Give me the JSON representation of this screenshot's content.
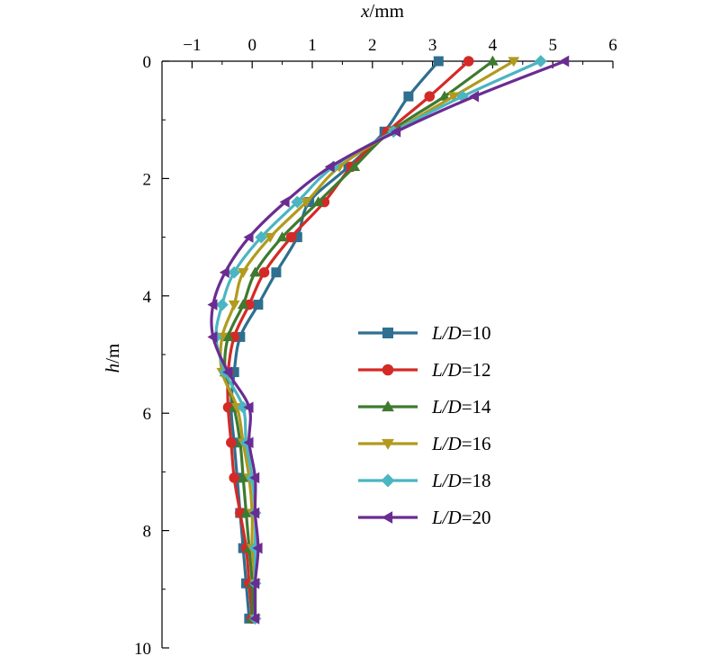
{
  "chart_data": {
    "type": "line",
    "xlabel": {
      "var": "x",
      "unit": "/mm"
    },
    "ylabel": {
      "var": "h",
      "unit": "/m"
    },
    "x_axis_position": "top",
    "y_inverted": true,
    "xlim": [
      -1.5,
      6
    ],
    "ylim": [
      0,
      10
    ],
    "xticks": [
      -1,
      0,
      1,
      2,
      3,
      4,
      5,
      6
    ],
    "yticks": [
      0,
      2,
      4,
      6,
      8,
      10
    ],
    "grid": false,
    "legend_position": "center-right",
    "depths": [
      0,
      0.6,
      1.2,
      1.8,
      2.4,
      3.0,
      3.6,
      4.15,
      4.7,
      5.3,
      5.9,
      6.5,
      7.1,
      7.7,
      8.3,
      8.9,
      9.5
    ],
    "series": [
      {
        "label_var": "L/D",
        "label_value": "=10",
        "color": "#2f6f8f",
        "marker": "square",
        "values": [
          3.1,
          2.6,
          2.2,
          1.6,
          0.95,
          0.75,
          0.4,
          0.1,
          -0.2,
          -0.3,
          -0.35,
          -0.3,
          -0.25,
          -0.2,
          -0.15,
          -0.1,
          -0.05
        ]
      },
      {
        "label_var": "L/D",
        "label_value": "=12",
        "color": "#d42a27",
        "marker": "circle",
        "values": [
          3.6,
          2.95,
          2.25,
          1.65,
          1.2,
          0.65,
          0.2,
          -0.05,
          -0.3,
          -0.4,
          -0.4,
          -0.35,
          -0.3,
          -0.2,
          -0.1,
          -0.05,
          0
        ]
      },
      {
        "label_var": "L/D",
        "label_value": "=14",
        "color": "#3e7a2f",
        "marker": "triangle-up",
        "values": [
          4.0,
          3.2,
          2.3,
          1.7,
          1.1,
          0.5,
          0.05,
          -0.15,
          -0.4,
          -0.45,
          -0.3,
          -0.2,
          -0.15,
          -0.1,
          -0.05,
          0,
          0
        ]
      },
      {
        "label_var": "L/D",
        "label_value": "=16",
        "color": "#b19a1e",
        "marker": "triangle-down",
        "values": [
          4.35,
          3.35,
          2.35,
          1.45,
          0.9,
          0.3,
          -0.15,
          -0.3,
          -0.5,
          -0.5,
          -0.25,
          -0.15,
          -0.05,
          0,
          0,
          0.05,
          0.05
        ]
      },
      {
        "label_var": "L/D",
        "label_value": "=18",
        "color": "#4bb5c1",
        "marker": "diamond",
        "values": [
          4.8,
          3.5,
          2.35,
          1.35,
          0.75,
          0.15,
          -0.3,
          -0.5,
          -0.6,
          -0.45,
          -0.15,
          -0.1,
          0,
          0.05,
          0.05,
          0.05,
          0.05
        ]
      },
      {
        "label_var": "L/D",
        "label_value": "=20",
        "color": "#6a2c91",
        "marker": "triangle-left",
        "values": [
          5.2,
          3.7,
          2.4,
          1.3,
          0.55,
          -0.05,
          -0.45,
          -0.65,
          -0.65,
          -0.4,
          -0.05,
          -0.05,
          0.05,
          0.05,
          0.1,
          0.05,
          0.05
        ]
      }
    ]
  }
}
